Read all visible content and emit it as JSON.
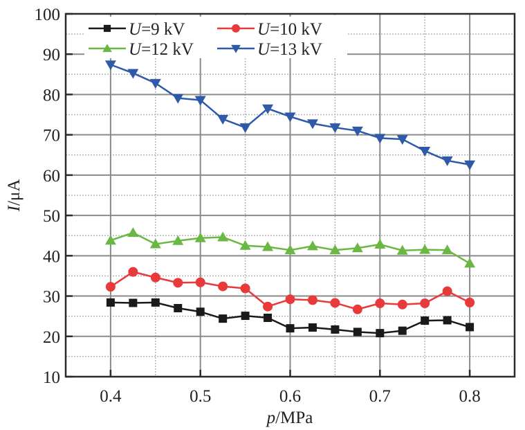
{
  "chart_data": {
    "type": "line",
    "title": "",
    "xlabel": {
      "var": "p",
      "unit": "/MPa"
    },
    "ylabel": {
      "var": "I",
      "unit": "/μA"
    },
    "xlim": [
      0.35,
      0.85
    ],
    "ylim": [
      10,
      100
    ],
    "xticks": [
      0.4,
      0.5,
      0.6,
      0.7,
      0.8
    ],
    "xtick_labels": [
      "0.4",
      "0.5",
      "0.6",
      "0.7",
      "0.8"
    ],
    "xminor": [
      0.45,
      0.55,
      0.65,
      0.75
    ],
    "yticks": [
      10,
      20,
      30,
      40,
      50,
      60,
      70,
      80,
      90,
      100
    ],
    "ytick_labels": [
      "10",
      "20",
      "30",
      "40",
      "50",
      "60",
      "70",
      "80",
      "90",
      "100"
    ],
    "yminor": [
      15,
      25,
      35,
      45,
      55,
      65,
      75,
      85,
      95
    ],
    "grid": true,
    "legend_position": "top-left",
    "x": [
      0.4,
      0.425,
      0.45,
      0.475,
      0.5,
      0.525,
      0.55,
      0.575,
      0.6,
      0.625,
      0.65,
      0.675,
      0.7,
      0.725,
      0.75,
      0.775,
      0.8
    ],
    "series": [
      {
        "name": "U=9 kV",
        "var": "U",
        "label_rest": "=9 kV",
        "color": "#1a1a1a",
        "marker": "square",
        "values": [
          28.4,
          28.3,
          28.4,
          27.0,
          26.1,
          24.4,
          25.1,
          24.6,
          22.0,
          22.2,
          21.7,
          21.1,
          20.8,
          21.4,
          23.9,
          24.0,
          22.3
        ]
      },
      {
        "name": "U=10 kV",
        "var": "U",
        "label_rest": "=10 kV",
        "color": "#e83a3a",
        "marker": "circle",
        "values": [
          32.3,
          36.0,
          34.6,
          33.3,
          33.4,
          32.4,
          31.9,
          27.4,
          29.2,
          29.0,
          28.3,
          26.7,
          28.2,
          27.9,
          28.2,
          31.2,
          28.4
        ]
      },
      {
        "name": "U=12 kV",
        "var": "U",
        "label_rest": "=12 kV",
        "color": "#6ab843",
        "marker": "triangle-up",
        "values": [
          43.8,
          45.7,
          42.9,
          43.7,
          44.4,
          44.6,
          42.5,
          42.2,
          41.4,
          42.4,
          41.4,
          41.9,
          42.8,
          41.3,
          41.5,
          41.4,
          38.1
        ]
      },
      {
        "name": "U=13 kV",
        "var": "U",
        "label_rest": "=13 kV",
        "color": "#2e5aa8",
        "marker": "triangle-down",
        "values": [
          87.4,
          85.3,
          82.8,
          79.1,
          78.6,
          73.9,
          71.8,
          76.5,
          74.5,
          72.8,
          71.8,
          71.0,
          69.2,
          68.9,
          66.0,
          63.6,
          62.6
        ]
      }
    ]
  }
}
